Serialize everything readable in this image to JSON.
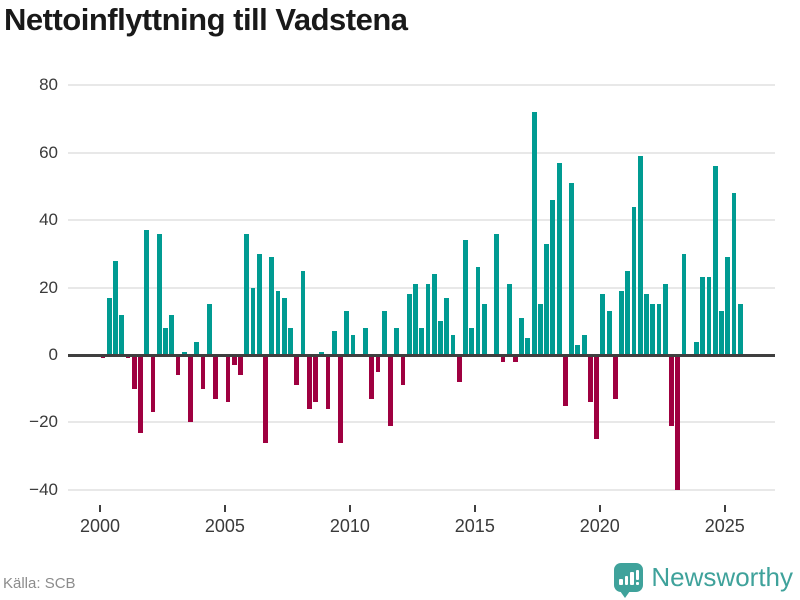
{
  "title": "Nettoinflyttning till Vadstena",
  "footer": {
    "source": "Källa: SCB",
    "brand": "Newsworthy"
  },
  "colors": {
    "positive_bar": "#009b92",
    "negative_bar": "#9f0040",
    "zero_line": "#3f3f3f",
    "gridline": "#e8e8e8",
    "title_text": "#191919",
    "axis_text": "#3a3a3a",
    "source_text": "#8c8c8c",
    "brand_teal": "#3fa29b"
  },
  "chart_data": {
    "type": "bar",
    "title": "Nettoinflyttning till Vadstena",
    "x_start": "2000-Q1",
    "x_end": "2025-Q3",
    "interval": "quarter",
    "values": [
      -1,
      17,
      28,
      12,
      -1,
      -10,
      -23,
      37,
      -17,
      36,
      8,
      12,
      -6,
      1,
      -20,
      4,
      -10,
      15,
      -13,
      0,
      -14,
      -3,
      -6,
      36,
      20,
      30,
      -26,
      29,
      19,
      17,
      8,
      -9,
      25,
      -16,
      -14,
      1,
      -16,
      7,
      -26,
      13,
      6,
      0,
      8,
      -13,
      -5,
      13,
      -21,
      8,
      -9,
      18,
      21,
      8,
      21,
      24,
      10,
      17,
      6,
      -8,
      34,
      8,
      26,
      15,
      0,
      36,
      -2,
      21,
      -2,
      11,
      5,
      72,
      15,
      33,
      46,
      57,
      -15,
      51,
      3,
      6,
      -14,
      -25,
      18,
      13,
      -13,
      19,
      25,
      44,
      59,
      18,
      15,
      15,
      21,
      -21,
      -40,
      30,
      0,
      4,
      23,
      23,
      56,
      13,
      29,
      48,
      15
    ],
    "xticks": [
      2000,
      2005,
      2010,
      2015,
      2020,
      2025
    ],
    "yticks": [
      80,
      60,
      40,
      20,
      0,
      -20,
      -40
    ],
    "ylim": [
      -40,
      80
    ],
    "grid": true,
    "legend": false
  }
}
